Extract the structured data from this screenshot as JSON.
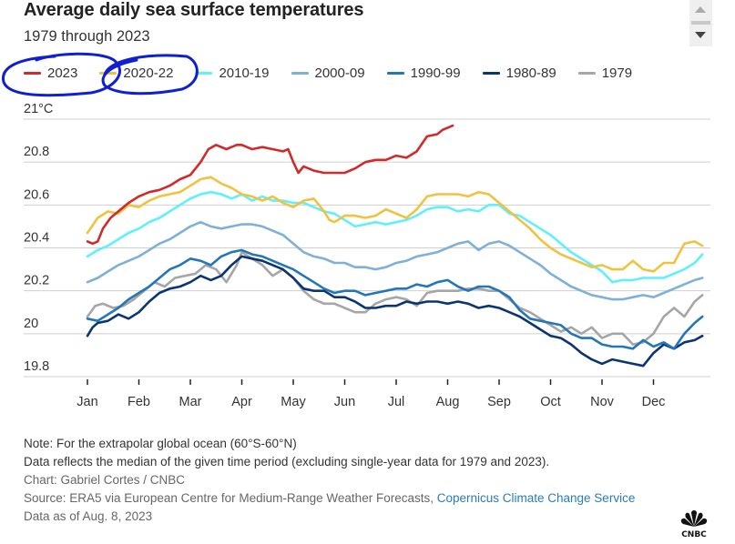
{
  "header": {
    "title": "Average daily sea surface temperatures",
    "subtitle": "1979 through 2023"
  },
  "legend": [
    {
      "label": "2023",
      "color": "#d12a2a"
    },
    {
      "label": "2020-22",
      "color": "#f0c23f"
    },
    {
      "label": "2010-19",
      "color": "#5fefff"
    },
    {
      "label": "2000-09",
      "color": "#7fb0d8"
    },
    {
      "label": "1990-99",
      "color": "#2377b8"
    },
    {
      "label": "1980-89",
      "color": "#0b3572"
    },
    {
      "label": "1979",
      "color": "#a6a6a6"
    }
  ],
  "annotation_color": "#1020d0",
  "chart_data": {
    "type": "line",
    "title": "Average daily sea surface temperatures",
    "subtitle": "1979 through 2023",
    "xlabel": "",
    "ylabel": "°C",
    "xlim": [
      0,
      12
    ],
    "ylim": [
      19.8,
      21.0
    ],
    "grid": true,
    "legend_position": "top",
    "y_ticks": [
      {
        "value": 21.0,
        "label": "21°C"
      },
      {
        "value": 20.8,
        "label": "20.8"
      },
      {
        "value": 20.6,
        "label": "20.6"
      },
      {
        "value": 20.4,
        "label": "20.4"
      },
      {
        "value": 20.2,
        "label": "20.2"
      },
      {
        "value": 20.0,
        "label": "20"
      },
      {
        "value": 19.8,
        "label": "19.8"
      }
    ],
    "x_ticks": [
      {
        "value": 0,
        "label": "Jan"
      },
      {
        "value": 1,
        "label": "Feb"
      },
      {
        "value": 2,
        "label": "Mar"
      },
      {
        "value": 3,
        "label": "Apr"
      },
      {
        "value": 4,
        "label": "May"
      },
      {
        "value": 5,
        "label": "Jun"
      },
      {
        "value": 6,
        "label": "Jul"
      },
      {
        "value": 7,
        "label": "Aug"
      },
      {
        "value": 8,
        "label": "Sep"
      },
      {
        "value": 9,
        "label": "Oct"
      },
      {
        "value": 10,
        "label": "Nov"
      },
      {
        "value": 11,
        "label": "Dec"
      }
    ],
    "x_unit": "months since Jan 1",
    "series": [
      {
        "name": "2023",
        "color": "#d12a2a",
        "x": [
          0,
          0.1,
          0.2,
          0.3,
          0.45,
          0.6,
          0.8,
          1.0,
          1.2,
          1.4,
          1.6,
          1.8,
          2.0,
          2.2,
          2.35,
          2.5,
          2.7,
          2.9,
          3.0,
          3.2,
          3.4,
          3.6,
          3.8,
          3.9,
          4.0,
          4.1,
          4.2,
          4.4,
          4.6,
          4.8,
          5.0,
          5.2,
          5.4,
          5.6,
          5.8,
          6.0,
          6.2,
          6.4,
          6.6,
          6.8,
          6.9,
          7.0,
          7.1
        ],
        "y": [
          20.43,
          20.42,
          20.43,
          20.49,
          20.54,
          20.57,
          20.61,
          20.64,
          20.66,
          20.67,
          20.69,
          20.72,
          20.74,
          20.8,
          20.86,
          20.88,
          20.86,
          20.88,
          20.88,
          20.86,
          20.87,
          20.86,
          20.85,
          20.86,
          20.8,
          20.75,
          20.78,
          20.76,
          20.75,
          20.75,
          20.75,
          20.77,
          20.8,
          20.81,
          20.81,
          20.83,
          20.82,
          20.85,
          20.92,
          20.93,
          20.95,
          20.96,
          20.97
        ]
      },
      {
        "name": "2020-22",
        "color": "#f0c23f",
        "x": [
          0,
          0.2,
          0.4,
          0.6,
          0.8,
          1.0,
          1.2,
          1.4,
          1.6,
          1.8,
          2.0,
          2.2,
          2.4,
          2.6,
          2.8,
          3.0,
          3.2,
          3.4,
          3.6,
          3.8,
          4.0,
          4.2,
          4.4,
          4.6,
          4.7,
          4.8,
          5.0,
          5.2,
          5.4,
          5.6,
          5.8,
          6.0,
          6.2,
          6.4,
          6.6,
          6.8,
          7.0,
          7.2,
          7.4,
          7.6,
          7.8,
          8.0,
          8.2,
          8.4,
          8.6,
          8.8,
          9.0,
          9.2,
          9.4,
          9.6,
          9.8,
          10.0,
          10.2,
          10.4,
          10.6,
          10.8,
          11.0,
          11.2,
          11.4,
          11.6,
          11.8,
          11.95
        ],
        "y": [
          20.47,
          20.54,
          20.57,
          20.56,
          20.6,
          20.59,
          20.62,
          20.64,
          20.65,
          20.66,
          20.69,
          20.72,
          20.73,
          20.7,
          20.68,
          20.65,
          20.64,
          20.62,
          20.64,
          20.61,
          20.59,
          20.62,
          20.63,
          20.57,
          20.53,
          20.52,
          20.55,
          20.55,
          20.54,
          20.55,
          20.58,
          20.56,
          20.54,
          20.58,
          20.64,
          20.65,
          20.65,
          20.65,
          20.64,
          20.66,
          20.65,
          20.61,
          20.57,
          20.53,
          20.49,
          20.44,
          20.4,
          20.37,
          20.35,
          20.33,
          20.31,
          20.32,
          20.3,
          20.3,
          20.34,
          20.3,
          20.29,
          20.33,
          20.33,
          20.42,
          20.43,
          20.41
        ]
      },
      {
        "name": "2010-19",
        "color": "#5fefff",
        "x": [
          0,
          0.2,
          0.4,
          0.6,
          0.8,
          1.0,
          1.2,
          1.4,
          1.6,
          1.8,
          2.0,
          2.2,
          2.4,
          2.6,
          2.8,
          3.0,
          3.2,
          3.4,
          3.6,
          3.8,
          4.0,
          4.2,
          4.4,
          4.6,
          4.8,
          5.0,
          5.2,
          5.4,
          5.6,
          5.8,
          6.0,
          6.2,
          6.4,
          6.6,
          6.8,
          7.0,
          7.2,
          7.4,
          7.6,
          7.8,
          8.0,
          8.2,
          8.4,
          8.6,
          8.8,
          9.0,
          9.2,
          9.4,
          9.6,
          9.8,
          10.0,
          10.2,
          10.4,
          10.6,
          10.8,
          11.0,
          11.2,
          11.4,
          11.6,
          11.8,
          11.95
        ],
        "y": [
          20.36,
          20.39,
          20.41,
          20.44,
          20.47,
          20.49,
          20.52,
          20.54,
          20.57,
          20.6,
          20.63,
          20.65,
          20.66,
          20.65,
          20.63,
          20.65,
          20.62,
          20.64,
          20.62,
          20.62,
          20.61,
          20.61,
          20.59,
          20.57,
          20.56,
          20.53,
          20.5,
          20.51,
          20.52,
          20.51,
          20.52,
          20.53,
          20.55,
          20.58,
          20.59,
          20.59,
          20.57,
          20.58,
          20.57,
          20.6,
          20.6,
          20.56,
          20.55,
          20.52,
          20.49,
          20.46,
          20.42,
          20.38,
          20.35,
          20.32,
          20.29,
          20.24,
          20.25,
          20.25,
          20.26,
          20.26,
          20.26,
          20.28,
          20.3,
          20.33,
          20.37
        ]
      },
      {
        "name": "2000-09",
        "color": "#7fb0d8",
        "x": [
          0,
          0.2,
          0.4,
          0.6,
          0.8,
          1.0,
          1.2,
          1.4,
          1.6,
          1.8,
          2.0,
          2.2,
          2.4,
          2.6,
          2.8,
          3.0,
          3.2,
          3.4,
          3.6,
          3.8,
          4.0,
          4.2,
          4.4,
          4.6,
          4.8,
          5.0,
          5.2,
          5.4,
          5.6,
          5.8,
          6.0,
          6.2,
          6.4,
          6.6,
          6.8,
          7.0,
          7.2,
          7.4,
          7.6,
          7.8,
          8.0,
          8.2,
          8.4,
          8.6,
          8.8,
          9.0,
          9.2,
          9.4,
          9.6,
          9.8,
          10.0,
          10.2,
          10.4,
          10.6,
          10.8,
          11.0,
          11.2,
          11.4,
          11.6,
          11.8,
          11.95
        ],
        "y": [
          20.24,
          20.26,
          20.29,
          20.32,
          20.34,
          20.36,
          20.39,
          20.42,
          20.44,
          20.47,
          20.5,
          20.52,
          20.5,
          20.49,
          20.5,
          20.51,
          20.51,
          20.5,
          20.48,
          20.46,
          20.42,
          20.38,
          20.36,
          20.35,
          20.33,
          20.33,
          20.31,
          20.31,
          20.3,
          20.31,
          20.33,
          20.34,
          20.36,
          20.37,
          20.38,
          20.4,
          20.42,
          20.43,
          20.39,
          20.42,
          20.43,
          20.41,
          20.38,
          20.35,
          20.32,
          20.28,
          20.25,
          20.22,
          20.2,
          20.18,
          20.17,
          20.16,
          20.16,
          20.17,
          20.18,
          20.17,
          20.19,
          20.21,
          20.23,
          20.25,
          20.26
        ]
      },
      {
        "name": "1990-99",
        "color": "#2377b8",
        "x": [
          0,
          0.2,
          0.4,
          0.6,
          0.8,
          1.0,
          1.2,
          1.4,
          1.6,
          1.8,
          2.0,
          2.2,
          2.4,
          2.6,
          2.8,
          3.0,
          3.2,
          3.4,
          3.6,
          3.8,
          4.0,
          4.2,
          4.4,
          4.6,
          4.8,
          5.0,
          5.2,
          5.4,
          5.6,
          5.8,
          6.0,
          6.2,
          6.4,
          6.6,
          6.8,
          7.0,
          7.2,
          7.4,
          7.6,
          7.8,
          8.0,
          8.2,
          8.4,
          8.6,
          8.8,
          9.0,
          9.2,
          9.4,
          9.6,
          9.8,
          10.0,
          10.2,
          10.4,
          10.6,
          10.8,
          11.0,
          11.2,
          11.4,
          11.6,
          11.8,
          11.95
        ],
        "y": [
          20.07,
          20.06,
          20.09,
          20.12,
          20.16,
          20.19,
          20.22,
          20.26,
          20.3,
          20.32,
          20.35,
          20.34,
          20.32,
          20.36,
          20.38,
          20.39,
          20.37,
          20.36,
          20.34,
          20.32,
          20.3,
          20.27,
          20.24,
          20.21,
          20.19,
          20.2,
          20.2,
          20.18,
          20.19,
          20.2,
          20.21,
          20.21,
          20.23,
          20.22,
          20.24,
          20.25,
          20.22,
          20.2,
          20.22,
          20.22,
          20.2,
          20.17,
          20.11,
          20.07,
          20.06,
          20.05,
          20.04,
          20.0,
          19.98,
          19.98,
          19.95,
          19.94,
          19.94,
          19.93,
          19.97,
          19.94,
          19.96,
          19.93,
          20.0,
          20.05,
          20.08
        ]
      },
      {
        "name": "1980-89",
        "color": "#0b3572",
        "x": [
          0,
          0.1,
          0.2,
          0.4,
          0.6,
          0.8,
          1.0,
          1.2,
          1.4,
          1.6,
          1.8,
          2.0,
          2.2,
          2.4,
          2.6,
          2.8,
          3.0,
          3.2,
          3.4,
          3.6,
          3.8,
          4.0,
          4.2,
          4.4,
          4.6,
          4.8,
          5.0,
          5.2,
          5.4,
          5.6,
          5.8,
          6.0,
          6.2,
          6.4,
          6.6,
          6.8,
          7.0,
          7.2,
          7.4,
          7.6,
          7.8,
          8.0,
          8.2,
          8.4,
          8.6,
          8.8,
          9.0,
          9.2,
          9.4,
          9.6,
          9.8,
          10.0,
          10.2,
          10.4,
          10.6,
          10.8,
          11.0,
          11.2,
          11.4,
          11.6,
          11.8,
          11.95
        ],
        "y": [
          19.99,
          20.03,
          20.05,
          20.06,
          20.09,
          20.07,
          20.1,
          20.15,
          20.19,
          20.21,
          20.22,
          20.24,
          20.27,
          20.25,
          20.27,
          20.32,
          20.36,
          20.35,
          20.34,
          20.32,
          20.3,
          20.26,
          20.21,
          20.2,
          20.2,
          20.17,
          20.17,
          20.15,
          20.12,
          20.12,
          20.13,
          20.13,
          20.15,
          20.14,
          20.15,
          20.15,
          20.14,
          20.15,
          20.14,
          20.12,
          20.13,
          20.12,
          20.1,
          20.08,
          20.05,
          20.02,
          19.99,
          19.98,
          19.95,
          19.91,
          19.88,
          19.86,
          19.88,
          19.87,
          19.86,
          19.85,
          19.91,
          19.95,
          19.93,
          19.96,
          19.97,
          19.99
        ]
      },
      {
        "name": "1979",
        "color": "#a6a6a6",
        "x": [
          0,
          0.15,
          0.3,
          0.5,
          0.7,
          0.9,
          1.1,
          1.3,
          1.5,
          1.7,
          1.9,
          2.1,
          2.3,
          2.5,
          2.7,
          2.9,
          3.0,
          3.2,
          3.4,
          3.6,
          3.8,
          4.0,
          4.2,
          4.4,
          4.6,
          4.8,
          5.0,
          5.2,
          5.4,
          5.6,
          5.8,
          6.0,
          6.2,
          6.4,
          6.6,
          6.8,
          7.0,
          7.2,
          7.4,
          7.6,
          7.8,
          8.0,
          8.2,
          8.4,
          8.6,
          8.8,
          9.0,
          9.2,
          9.4,
          9.6,
          9.8,
          10.0,
          10.2,
          10.4,
          10.6,
          10.8,
          11.0,
          11.2,
          11.4,
          11.6,
          11.8,
          11.95
        ],
        "y": [
          20.08,
          20.13,
          20.14,
          20.12,
          20.13,
          20.16,
          20.2,
          20.24,
          20.22,
          20.26,
          20.27,
          20.28,
          20.32,
          20.3,
          20.24,
          20.32,
          20.38,
          20.35,
          20.32,
          20.27,
          20.3,
          20.26,
          20.2,
          20.16,
          20.14,
          20.14,
          20.12,
          20.1,
          20.1,
          20.14,
          20.16,
          20.17,
          20.16,
          20.13,
          20.19,
          20.2,
          20.2,
          20.2,
          20.21,
          20.21,
          20.2,
          20.2,
          20.16,
          20.12,
          20.1,
          20.07,
          20.04,
          20.01,
          20.03,
          20.0,
          20.03,
          19.98,
          20.0,
          20.0,
          19.95,
          19.96,
          20.0,
          20.08,
          20.12,
          20.08,
          20.15,
          20.18
        ]
      }
    ]
  },
  "footer": {
    "note": "Note: For the extrapolar global ocean (60°S-60°N)",
    "data_note": "Data reflects the median of the given time period (excluding single-year data for 1979 and 2023).",
    "credit": "Chart: Gabriel Cortes / CNBC",
    "source_prefix": "Source: ERA5 via European Centre for Medium-Range Weather Forecasts, ",
    "source_link": "Copernicus Climate Change Service",
    "data_as_of": "Data as of Aug. 8, 2023",
    "logo_text": "CNBC"
  }
}
